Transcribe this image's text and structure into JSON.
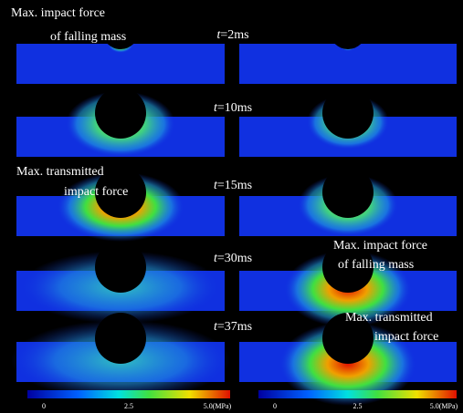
{
  "time_labels": [
    {
      "variable": "t",
      "value": "=2ms"
    },
    {
      "variable": "t",
      "value": "=10ms"
    },
    {
      "variable": "t",
      "value": "=15ms"
    },
    {
      "variable": "t",
      "value": "=30ms"
    },
    {
      "variable": "t",
      "value": "=37ms"
    }
  ],
  "annotations": [
    {
      "lines": [
        "Max. impact force",
        "of falling mass"
      ]
    },
    {
      "lines": [
        "Max. transmitted",
        "impact force"
      ]
    },
    {
      "lines": [
        "Max. impact force",
        "of falling mass"
      ]
    },
    {
      "lines": [
        "Max. transmitted",
        "impact force"
      ]
    }
  ],
  "colorbars": [
    {
      "labels": [
        "0",
        "2.5",
        "5.0(MPa)"
      ]
    },
    {
      "labels": [
        "0",
        "2.5",
        "5.0(MPa)"
      ]
    }
  ]
}
